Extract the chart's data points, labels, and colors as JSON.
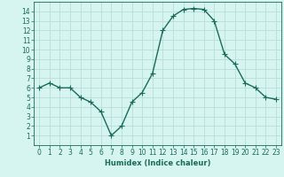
{
  "title": "",
  "xlabel": "Humidex (Indice chaleur)",
  "x": [
    0,
    1,
    2,
    3,
    4,
    5,
    6,
    7,
    8,
    9,
    10,
    11,
    12,
    13,
    14,
    15,
    16,
    17,
    18,
    19,
    20,
    21,
    22,
    23
  ],
  "y": [
    6,
    6.5,
    6,
    6,
    5,
    4.5,
    3.5,
    1,
    2,
    4.5,
    5.5,
    7.5,
    12,
    13.5,
    14.2,
    14.3,
    14.2,
    13,
    9.5,
    8.5,
    6.5,
    6,
    5,
    4.8
  ],
  "line_color": "#1a6b5a",
  "bg_color": "#d6f5f0",
  "grid_color": "#b8deda",
  "tick_label_color": "#1a6b5a",
  "ylim": [
    0,
    15
  ],
  "yticks": [
    1,
    2,
    3,
    4,
    5,
    6,
    7,
    8,
    9,
    10,
    11,
    12,
    13,
    14
  ],
  "xticks": [
    0,
    1,
    2,
    3,
    4,
    5,
    6,
    7,
    8,
    9,
    10,
    11,
    12,
    13,
    14,
    15,
    16,
    17,
    18,
    19,
    20,
    21,
    22,
    23
  ],
  "marker": "+",
  "linewidth": 1.0,
  "markersize": 4,
  "markeredgewidth": 0.8,
  "axis_fontsize": 6,
  "tick_fontsize": 5.5
}
